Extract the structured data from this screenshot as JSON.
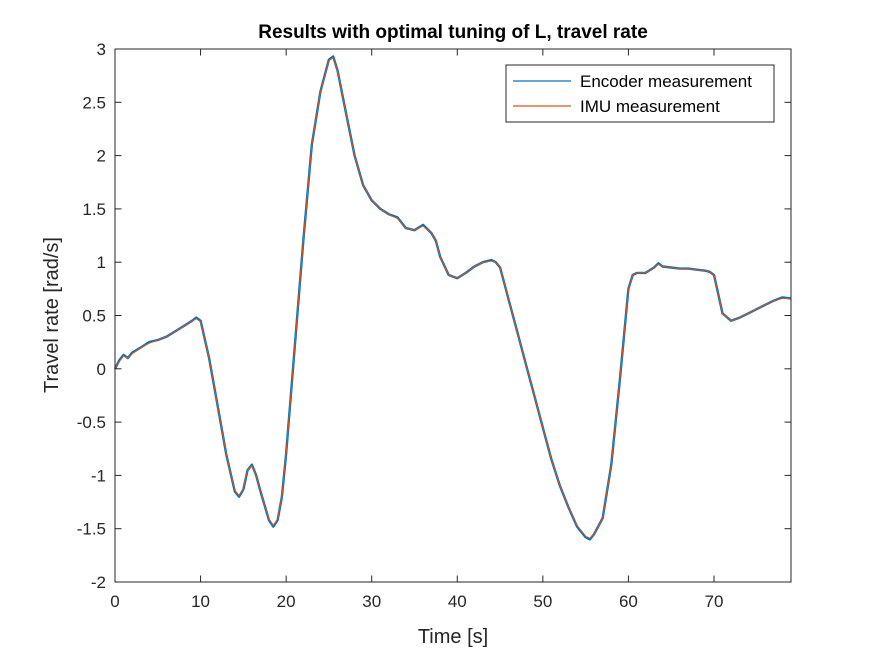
{
  "chart_data": {
    "type": "line",
    "title": "Results with optimal tuning of L, travel rate",
    "xlabel": "Time [s]",
    "ylabel": "Travel rate [rad/s]",
    "xlim": [
      0,
      79
    ],
    "ylim": [
      -2,
      3
    ],
    "xticks": [
      0,
      10,
      20,
      30,
      40,
      50,
      60,
      70
    ],
    "yticks": [
      -2,
      -1.5,
      -1,
      -0.5,
      0,
      0.5,
      1,
      1.5,
      2,
      2.5,
      3
    ],
    "xtick_labels": [
      "0",
      "10",
      "20",
      "30",
      "40",
      "50",
      "60",
      "70"
    ],
    "ytick_labels": [
      "-2",
      "-1.5",
      "-1",
      "-0.5",
      "0",
      "0.5",
      "1",
      "1.5",
      "2",
      "2.5",
      "3"
    ],
    "grid": false,
    "legend_position": "top-right",
    "series": [
      {
        "name": "Encoder measurement",
        "color": "#0072BD",
        "x": [
          0,
          0.5,
          1,
          1.5,
          2,
          3,
          4,
          5,
          6,
          7,
          8,
          9,
          9.5,
          10,
          11,
          12,
          13,
          14,
          14.5,
          15,
          15.5,
          16,
          16.5,
          17,
          18,
          18.5,
          19,
          19.5,
          20,
          21,
          22,
          23,
          24,
          25,
          25.5,
          26,
          27,
          28,
          29,
          30,
          31,
          32,
          33,
          34,
          35,
          36,
          37,
          37.5,
          38,
          39,
          40,
          41,
          42,
          43,
          44,
          44.5,
          45,
          46,
          47,
          48,
          49,
          50,
          51,
          52,
          53,
          54,
          55,
          55.5,
          56,
          57,
          58,
          59,
          60,
          60.5,
          61,
          62,
          63,
          63.5,
          64,
          65,
          66,
          67,
          68,
          69,
          69.5,
          70,
          70.5,
          71,
          72,
          73,
          74,
          75,
          76,
          77,
          78,
          79
        ],
        "y": [
          0,
          0.08,
          0.13,
          0.1,
          0.15,
          0.2,
          0.25,
          0.27,
          0.3,
          0.35,
          0.4,
          0.45,
          0.48,
          0.45,
          0.1,
          -0.35,
          -0.8,
          -1.15,
          -1.2,
          -1.13,
          -0.95,
          -0.9,
          -1,
          -1.15,
          -1.42,
          -1.48,
          -1.42,
          -1.2,
          -0.8,
          0.2,
          1.2,
          2.1,
          2.6,
          2.9,
          2.93,
          2.8,
          2.4,
          2.0,
          1.72,
          1.58,
          1.5,
          1.45,
          1.42,
          1.32,
          1.3,
          1.35,
          1.27,
          1.2,
          1.05,
          0.88,
          0.85,
          0.9,
          0.96,
          1.0,
          1.02,
          1.0,
          0.95,
          0.65,
          0.35,
          0.05,
          -0.25,
          -0.55,
          -0.85,
          -1.1,
          -1.3,
          -1.48,
          -1.58,
          -1.6,
          -1.55,
          -1.4,
          -0.9,
          -0.1,
          0.75,
          0.88,
          0.9,
          0.9,
          0.95,
          0.99,
          0.96,
          0.95,
          0.94,
          0.94,
          0.93,
          0.92,
          0.91,
          0.88,
          0.7,
          0.52,
          0.45,
          0.48,
          0.52,
          0.56,
          0.6,
          0.64,
          0.67,
          0.66
        ]
      },
      {
        "name": "IMU measurement",
        "color": "#D95319",
        "x": [
          0,
          0.5,
          1,
          1.5,
          2,
          3,
          4,
          5,
          6,
          7,
          8,
          9,
          9.5,
          10,
          11,
          12,
          13,
          14,
          14.5,
          15,
          15.5,
          16,
          16.5,
          17,
          18,
          18.5,
          19,
          19.5,
          20,
          21,
          22,
          23,
          24,
          25,
          25.5,
          26,
          27,
          28,
          29,
          30,
          31,
          32,
          33,
          34,
          35,
          36,
          37,
          37.5,
          38,
          39,
          40,
          41,
          42,
          43,
          44,
          44.5,
          45,
          46,
          47,
          48,
          49,
          50,
          51,
          52,
          53,
          54,
          55,
          55.5,
          56,
          57,
          58,
          59,
          60,
          60.5,
          61,
          62,
          63,
          63.5,
          64,
          65,
          66,
          67,
          68,
          69,
          69.5,
          70,
          70.5,
          71,
          72,
          73,
          74,
          75,
          76,
          77,
          78,
          79
        ],
        "y": [
          0,
          0.07,
          0.12,
          0.1,
          0.14,
          0.2,
          0.24,
          0.27,
          0.3,
          0.35,
          0.4,
          0.45,
          0.47,
          0.44,
          0.1,
          -0.35,
          -0.8,
          -1.14,
          -1.19,
          -1.12,
          -0.95,
          -0.91,
          -1,
          -1.15,
          -1.41,
          -1.47,
          -1.41,
          -1.2,
          -0.8,
          0.2,
          1.2,
          2.1,
          2.6,
          2.89,
          2.92,
          2.8,
          2.4,
          2.0,
          1.72,
          1.58,
          1.5,
          1.45,
          1.41,
          1.32,
          1.3,
          1.34,
          1.27,
          1.2,
          1.05,
          0.88,
          0.85,
          0.9,
          0.96,
          1.0,
          1.01,
          1.0,
          0.95,
          0.65,
          0.35,
          0.05,
          -0.25,
          -0.55,
          -0.85,
          -1.1,
          -1.3,
          -1.47,
          -1.57,
          -1.59,
          -1.55,
          -1.4,
          -0.9,
          -0.1,
          0.75,
          0.88,
          0.9,
          0.9,
          0.95,
          0.98,
          0.96,
          0.95,
          0.94,
          0.94,
          0.93,
          0.92,
          0.91,
          0.88,
          0.7,
          0.52,
          0.45,
          0.48,
          0.52,
          0.56,
          0.6,
          0.64,
          0.66,
          0.66
        ]
      }
    ]
  }
}
